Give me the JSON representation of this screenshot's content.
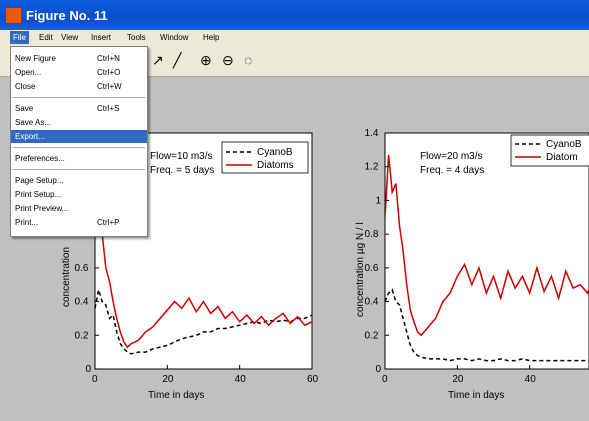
{
  "window": {
    "title": "Figure No. 11"
  },
  "menubar": {
    "items": [
      "File",
      "Edit",
      "View",
      "Insert",
      "Tools",
      "Window",
      "Help"
    ],
    "active": "File"
  },
  "file_menu": {
    "items": [
      {
        "label": "New Figure",
        "shortcut": "Ctrl+N"
      },
      {
        "label": "Open...",
        "shortcut": "Ctrl+O"
      },
      {
        "label": "Close",
        "shortcut": "Ctrl+W"
      },
      {
        "label": "Save",
        "shortcut": "Ctrl+S"
      },
      {
        "label": "Save As...",
        "shortcut": ""
      },
      {
        "label": "Export...",
        "shortcut": ""
      },
      {
        "label": "Preferences...",
        "shortcut": ""
      },
      {
        "label": "Page Setup...",
        "shortcut": ""
      },
      {
        "label": "Print Setup...",
        "shortcut": ""
      },
      {
        "label": "Print Preview...",
        "shortcut": ""
      },
      {
        "label": "Print...",
        "shortcut": "Ctrl+P"
      }
    ],
    "highlighted": "Export..."
  },
  "toolbar": {
    "icons": [
      "arrow-icon",
      "line-icon",
      "zoom-in-icon",
      "zoom-out-icon",
      "rotate-icon"
    ]
  },
  "chart_data": [
    {
      "type": "line",
      "annotation_line1": "Flow=10 m3/s",
      "annotation_line2": "Freq. = 5 days",
      "ylabel": "concentration",
      "xlabel": "Time in days",
      "xlim": [
        0,
        60
      ],
      "ylim": [
        0,
        1.4
      ],
      "xticks": [
        0,
        20,
        40,
        60
      ],
      "yticks": [
        0,
        0.2,
        0.4,
        0.6
      ],
      "legend": {
        "placement": "top-right",
        "entries": [
          "CyanoB",
          "Diatoms"
        ]
      },
      "series": [
        {
          "name": "CyanoB",
          "color": "#000000",
          "style": "dashed",
          "x": [
            0,
            1,
            2,
            3,
            4,
            5,
            6,
            7,
            8,
            9,
            10,
            12,
            14,
            16,
            18,
            20,
            22,
            24,
            26,
            28,
            30,
            32,
            34,
            36,
            38,
            40,
            42,
            44,
            46,
            48,
            50,
            52,
            54,
            56,
            58,
            60
          ],
          "y": [
            0.36,
            0.47,
            0.4,
            0.38,
            0.3,
            0.32,
            0.22,
            0.15,
            0.12,
            0.1,
            0.09,
            0.1,
            0.1,
            0.12,
            0.13,
            0.14,
            0.16,
            0.18,
            0.19,
            0.2,
            0.22,
            0.22,
            0.24,
            0.24,
            0.25,
            0.26,
            0.27,
            0.28,
            0.27,
            0.29,
            0.28,
            0.29,
            0.28,
            0.3,
            0.3,
            0.32
          ]
        },
        {
          "name": "Diatoms",
          "color": "#cc0000",
          "style": "solid",
          "x": [
            0,
            1,
            2,
            3,
            4,
            5,
            6,
            7,
            8,
            9,
            10,
            12,
            14,
            16,
            18,
            20,
            22,
            24,
            26,
            28,
            30,
            32,
            34,
            36,
            38,
            40,
            42,
            44,
            46,
            48,
            50,
            52,
            54,
            56,
            58,
            60
          ],
          "y": [
            1.15,
            0.95,
            0.8,
            0.6,
            0.52,
            0.4,
            0.3,
            0.22,
            0.16,
            0.13,
            0.15,
            0.17,
            0.22,
            0.25,
            0.3,
            0.35,
            0.4,
            0.36,
            0.42,
            0.34,
            0.4,
            0.33,
            0.37,
            0.3,
            0.34,
            0.28,
            0.32,
            0.27,
            0.31,
            0.26,
            0.3,
            0.33,
            0.27,
            0.31,
            0.26,
            0.28
          ]
        }
      ]
    },
    {
      "type": "line",
      "annotation_line1": "Flow=20 m3/s",
      "annotation_line2": "Freq. = 4 days",
      "ylabel": "concentration µg N / l",
      "xlabel": "Time in days",
      "xlim": [
        0,
        60
      ],
      "ylim": [
        0,
        1.4
      ],
      "xticks": [
        0,
        20,
        40
      ],
      "yticks": [
        0,
        0.2,
        0.4,
        0.6,
        0.8,
        1,
        1.2,
        1.4
      ],
      "legend": {
        "placement": "top-right",
        "entries": [
          "CyanoB",
          "Diatom"
        ]
      },
      "series": [
        {
          "name": "CyanoB",
          "color": "#000000",
          "style": "dashed",
          "x": [
            0,
            1,
            2,
            3,
            4,
            5,
            6,
            7,
            8,
            9,
            10,
            12,
            14,
            16,
            18,
            20,
            22,
            24,
            26,
            28,
            30,
            32,
            34,
            36,
            38,
            40,
            42,
            44,
            46,
            48,
            50,
            52,
            54,
            56,
            58,
            60
          ],
          "y": [
            0.4,
            0.45,
            0.47,
            0.4,
            0.38,
            0.3,
            0.22,
            0.14,
            0.1,
            0.08,
            0.07,
            0.06,
            0.06,
            0.06,
            0.05,
            0.06,
            0.06,
            0.05,
            0.06,
            0.05,
            0.05,
            0.06,
            0.05,
            0.05,
            0.06,
            0.05,
            0.05,
            0.05,
            0.05,
            0.05,
            0.05,
            0.05,
            0.05,
            0.05,
            0.05,
            0.05
          ]
        },
        {
          "name": "Diatom",
          "color": "#cc0000",
          "style": "solid",
          "x": [
            0,
            1,
            2,
            3,
            4,
            5,
            6,
            7,
            8,
            9,
            10,
            12,
            14,
            16,
            18,
            20,
            22,
            24,
            26,
            28,
            30,
            32,
            34,
            36,
            38,
            40,
            42,
            44,
            46,
            48,
            50,
            52,
            54,
            56,
            58,
            60
          ],
          "y": [
            0.9,
            1.27,
            1.05,
            1.1,
            0.85,
            0.7,
            0.5,
            0.35,
            0.28,
            0.22,
            0.2,
            0.25,
            0.3,
            0.4,
            0.45,
            0.55,
            0.62,
            0.5,
            0.6,
            0.45,
            0.55,
            0.42,
            0.58,
            0.48,
            0.55,
            0.45,
            0.6,
            0.46,
            0.55,
            0.42,
            0.58,
            0.48,
            0.5,
            0.45,
            0.55,
            0.45
          ]
        }
      ]
    }
  ]
}
